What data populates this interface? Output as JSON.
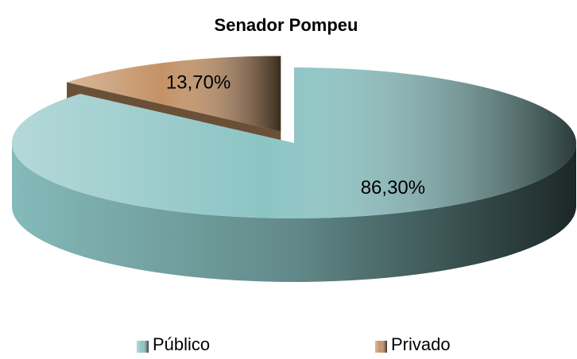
{
  "chart_data": {
    "type": "pie",
    "title": "Senador Pompeu",
    "categories": [
      "Público",
      "Privado"
    ],
    "values": [
      86.3,
      13.7
    ],
    "value_labels": [
      "86,30%",
      "13,70%"
    ],
    "colors": [
      "#8cc4c4",
      "#c49266"
    ]
  }
}
